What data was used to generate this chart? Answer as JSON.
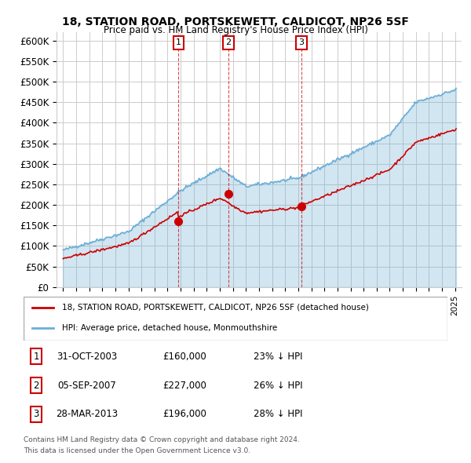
{
  "title": "18, STATION ROAD, PORTSKEWETT, CALDICOT, NP26 5SF",
  "subtitle": "Price paid vs. HM Land Registry's House Price Index (HPI)",
  "ylabel_ticks": [
    "£0",
    "£50K",
    "£100K",
    "£150K",
    "£200K",
    "£250K",
    "£300K",
    "£350K",
    "£400K",
    "£450K",
    "£500K",
    "£550K",
    "£600K"
  ],
  "ytick_values": [
    0,
    50000,
    100000,
    150000,
    200000,
    250000,
    300000,
    350000,
    400000,
    450000,
    500000,
    550000,
    600000
  ],
  "sale_dates": [
    "2003-10-31",
    "2007-09-05",
    "2013-03-28"
  ],
  "sale_prices": [
    160000,
    227000,
    196000
  ],
  "sale_labels": [
    "1",
    "2",
    "3"
  ],
  "legend_red": "18, STATION ROAD, PORTSKEWETT, CALDICOT, NP26 5SF (detached house)",
  "legend_blue": "HPI: Average price, detached house, Monmouthshire",
  "table_rows": [
    [
      "1",
      "31-OCT-2003",
      "£160,000",
      "23% ↓ HPI"
    ],
    [
      "2",
      "05-SEP-2007",
      "£227,000",
      "26% ↓ HPI"
    ],
    [
      "3",
      "28-MAR-2013",
      "£196,000",
      "28% ↓ HPI"
    ]
  ],
  "footnote1": "Contains HM Land Registry data © Crown copyright and database right 2024.",
  "footnote2": "This data is licensed under the Open Government Licence v3.0.",
  "hpi_color": "#6baed6",
  "price_color": "#cc0000",
  "sale_marker_color": "#cc0000",
  "vline_color": "#cc0000",
  "grid_color": "#cccccc",
  "xlim_start": 1994.5,
  "xlim_end": 2025.5,
  "ylim_min": 0,
  "ylim_max": 620000
}
